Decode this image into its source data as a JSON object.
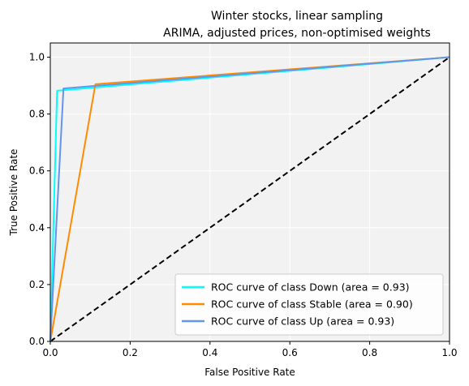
{
  "chart_data": {
    "type": "line",
    "title": "Winter stocks, linear sampling",
    "subtitle": "ARIMA, adjusted prices, non-optimised weights",
    "xlabel": "False Positive Rate",
    "ylabel": "True Positive Rate",
    "xlim": [
      0.0,
      1.0
    ],
    "ylim": [
      0.0,
      1.05
    ],
    "xticks": [
      "0.0",
      "0.2",
      "0.4",
      "0.6",
      "0.8",
      "1.0"
    ],
    "yticks": [
      "0.0",
      "0.2",
      "0.4",
      "0.6",
      "0.8",
      "1.0"
    ],
    "grid": true,
    "legend_position": "lower-right",
    "series": [
      {
        "name": "ROC curve of class Down (area = 0.93)",
        "color": "#00ffff",
        "x": [
          0.0,
          0.017,
          1.0
        ],
        "y": [
          0.0,
          0.882,
          1.0
        ]
      },
      {
        "name": "ROC curve of class Stable (area = 0.90)",
        "color": "#ff8c00",
        "x": [
          0.0,
          0.113,
          1.0
        ],
        "y": [
          0.0,
          0.905,
          1.0
        ]
      },
      {
        "name": "ROC curve of class Up (area = 0.93)",
        "color": "#6495ed",
        "x": [
          0.0,
          0.033,
          1.0
        ],
        "y": [
          0.0,
          0.89,
          1.0
        ]
      }
    ],
    "reference_line": {
      "x": [
        0.0,
        1.0
      ],
      "y": [
        0.0,
        1.0
      ],
      "color": "#000000",
      "style": "dashed"
    }
  }
}
